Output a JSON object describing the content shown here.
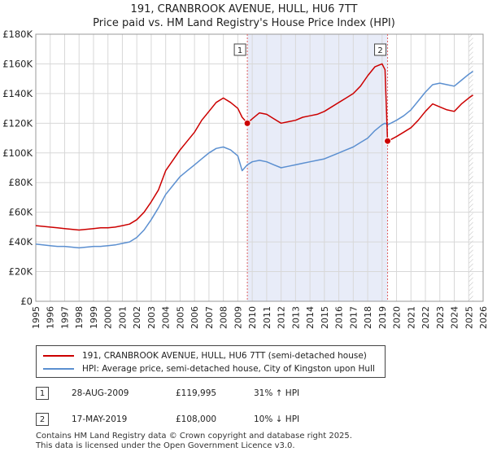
{
  "title_line1": "191, CRANBROOK AVENUE, HULL, HU6 7TT",
  "title_line2": "Price paid vs. HM Land Registry's House Price Index (HPI)",
  "legend": {
    "property_label": "191, CRANBROOK AVENUE, HULL, HU6 7TT (semi-detached house)",
    "hpi_label": "HPI: Average price, semi-detached house, City of Kingston upon Hull"
  },
  "transactions": [
    {
      "num": "1",
      "date": "28-AUG-2009",
      "price": "£119,995",
      "hpi": "31% ↑ HPI"
    },
    {
      "num": "2",
      "date": "17-MAY-2019",
      "price": "£108,000",
      "hpi": "10% ↓ HPI"
    }
  ],
  "footer_line1": "Contains HM Land Registry data © Crown copyright and database right 2025.",
  "footer_line2": "This data is licensed under the Open Government Licence v3.0.",
  "colors": {
    "property": "#cc0000",
    "hpi": "#5b8fd0",
    "shade": "#e8ecf8",
    "grid": "#d8d8d8",
    "marker": "#cc0000"
  },
  "chart_data": {
    "type": "line",
    "title": "Price paid vs. HM Land Registry's House Price Index (HPI)",
    "xlim": [
      1995,
      2026
    ],
    "ylim": [
      0,
      180000
    ],
    "y_ticks": [
      0,
      20000,
      40000,
      60000,
      80000,
      100000,
      120000,
      140000,
      160000,
      180000
    ],
    "y_tick_labels": [
      "£0",
      "£20K",
      "£40K",
      "£60K",
      "£80K",
      "£100K",
      "£120K",
      "£140K",
      "£160K",
      "£180K"
    ],
    "x_ticks": [
      1995,
      1996,
      1997,
      1998,
      1999,
      2000,
      2001,
      2002,
      2003,
      2004,
      2005,
      2006,
      2007,
      2008,
      2009,
      2010,
      2011,
      2012,
      2013,
      2014,
      2015,
      2016,
      2017,
      2018,
      2019,
      2020,
      2021,
      2022,
      2023,
      2024,
      2025,
      2026
    ],
    "x_tick_labels": [
      "1995",
      "1996",
      "1997",
      "1998",
      "1999",
      "2000",
      "2001",
      "2002",
      "2003",
      "2004",
      "2005",
      "2006",
      "2007",
      "2008",
      "2009",
      "2010",
      "2011",
      "2012",
      "2013",
      "2014",
      "2015",
      "2016",
      "2017",
      "2018",
      "2019",
      "2020",
      "2021",
      "2022",
      "2023",
      "2024",
      "2025",
      "2026"
    ],
    "shaded_period": [
      2009.66,
      2019.38
    ],
    "forecast_start": 2025.0,
    "series": [
      {
        "name": "191, CRANBROOK AVENUE, HULL, HU6 7TT (semi-detached house)",
        "x": [
          1995.0,
          1995.5,
          1996.0,
          1996.5,
          1997.0,
          1997.5,
          1998.0,
          1998.5,
          1999.0,
          1999.5,
          2000.0,
          2000.5,
          2001.0,
          2001.5,
          2002.0,
          2002.5,
          2003.0,
          2003.5,
          2004.0,
          2004.5,
          2005.0,
          2005.5,
          2006.0,
          2006.5,
          2007.0,
          2007.5,
          2008.0,
          2008.5,
          2009.0,
          2009.3,
          2009.66,
          2010.0,
          2010.5,
          2011.0,
          2011.5,
          2012.0,
          2012.5,
          2013.0,
          2013.5,
          2014.0,
          2014.5,
          2015.0,
          2015.5,
          2016.0,
          2016.5,
          2017.0,
          2017.5,
          2018.0,
          2018.5,
          2019.0,
          2019.2,
          2019.38,
          2019.6,
          2020.0,
          2020.5,
          2021.0,
          2021.5,
          2022.0,
          2022.5,
          2023.0,
          2023.5,
          2024.0,
          2024.5,
          2025.0,
          2025.3
        ],
        "y": [
          51000,
          50500,
          50000,
          49500,
          49000,
          48500,
          48000,
          48500,
          49000,
          49500,
          49500,
          50000,
          51000,
          52000,
          55000,
          60000,
          67000,
          75000,
          88000,
          95000,
          102000,
          108000,
          114000,
          122000,
          128000,
          134000,
          137000,
          134000,
          130000,
          124000,
          119995,
          123000,
          127000,
          126000,
          123000,
          120000,
          121000,
          122000,
          124000,
          125000,
          126000,
          128000,
          131000,
          134000,
          137000,
          140000,
          145000,
          152000,
          158000,
          160000,
          156000,
          108000,
          109000,
          111000,
          114000,
          117000,
          122000,
          128000,
          133000,
          131000,
          129000,
          128000,
          133000,
          137000,
          139000
        ]
      },
      {
        "name": "HPI: Average price, semi-detached house, City of Kingston upon Hull",
        "x": [
          1995.0,
          1995.5,
          1996.0,
          1996.5,
          1997.0,
          1997.5,
          1998.0,
          1998.5,
          1999.0,
          1999.5,
          2000.0,
          2000.5,
          2001.0,
          2001.5,
          2002.0,
          2002.5,
          2003.0,
          2003.5,
          2004.0,
          2004.5,
          2005.0,
          2005.5,
          2006.0,
          2006.5,
          2007.0,
          2007.5,
          2008.0,
          2008.5,
          2009.0,
          2009.3,
          2009.66,
          2010.0,
          2010.5,
          2011.0,
          2011.5,
          2012.0,
          2012.5,
          2013.0,
          2013.5,
          2014.0,
          2014.5,
          2015.0,
          2015.5,
          2016.0,
          2016.5,
          2017.0,
          2017.5,
          2018.0,
          2018.5,
          2019.0,
          2019.2,
          2019.38,
          2019.6,
          2020.0,
          2020.5,
          2021.0,
          2021.5,
          2022.0,
          2022.5,
          2023.0,
          2023.5,
          2024.0,
          2024.5,
          2025.0,
          2025.3
        ],
        "y": [
          38500,
          38000,
          37500,
          37000,
          37000,
          36500,
          36000,
          36500,
          37000,
          37000,
          37500,
          38000,
          39000,
          40000,
          43000,
          48000,
          55000,
          63000,
          72000,
          78000,
          84000,
          88000,
          92000,
          96000,
          100000,
          103000,
          104000,
          102000,
          98000,
          88000,
          92000,
          94000,
          95000,
          94000,
          92000,
          90000,
          91000,
          92000,
          93000,
          94000,
          95000,
          96000,
          98000,
          100000,
          102000,
          104000,
          107000,
          110000,
          115000,
          119000,
          120000,
          119000,
          120000,
          122000,
          125000,
          129000,
          135000,
          141000,
          146000,
          147000,
          146000,
          145000,
          149000,
          153000,
          155000
        ]
      }
    ],
    "markers": [
      {
        "label": "1",
        "x": 2009.66,
        "y": 119995
      },
      {
        "label": "2",
        "x": 2019.38,
        "y": 108000
      }
    ]
  }
}
